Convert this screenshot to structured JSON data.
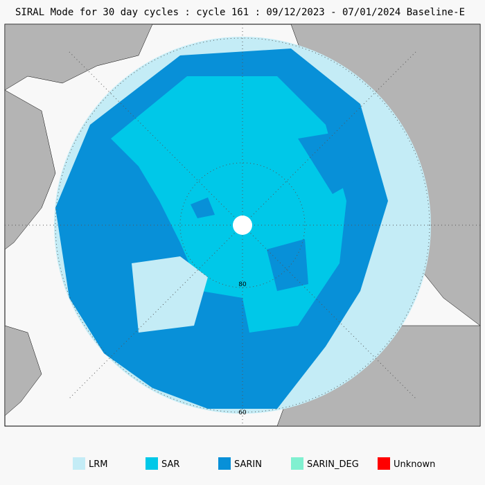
{
  "title": "SIRAL Mode for 30 day cycles : cycle 161 : 09/12/2023 - 07/01/2024 Baseline-E",
  "map": {
    "lat_labels": [
      "80",
      "60"
    ]
  },
  "legend": [
    {
      "label": "LRM",
      "color": "#c4ecf6"
    },
    {
      "label": "SAR",
      "color": "#00c8e8"
    },
    {
      "label": "SARIN",
      "color": "#0890d8"
    },
    {
      "label": "SARIN_DEG",
      "color": "#80f0d0"
    },
    {
      "label": "Unknown",
      "color": "#ff0000"
    }
  ]
}
